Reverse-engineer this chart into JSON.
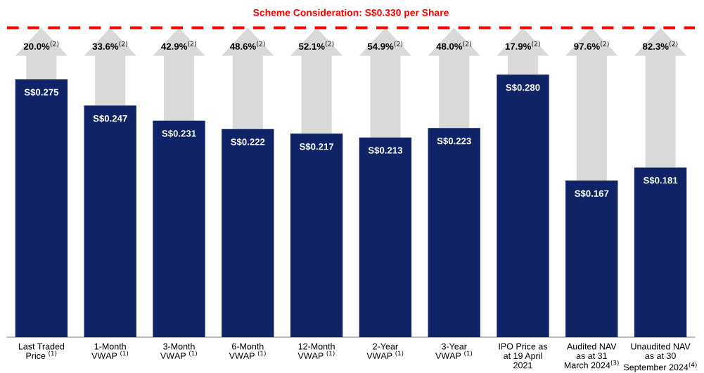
{
  "chart_data": {
    "type": "bar",
    "categories": [
      "Last Traded\nPrice $^{(1)}$",
      "1-Month\nVWAP $^{(1)}$",
      "3-Month\nVWAP $^{(1)}$",
      "6-Month\nVWAP $^{(1)}$",
      "12-Month\nVWAP $^{(1)}$",
      "2-Year\nVWAP $^{(1)}$",
      "3-Year\nVWAP $^{(1)}$",
      "IPO Price as\nat 19 April\n2021",
      "Audited NAV\nas at 31\nMarch 2024$^{(3)}$",
      "Unaudited NAV\nas at 30\nSeptember 2024$^{(4)}$"
    ],
    "values": [
      0.275,
      0.247,
      0.231,
      0.222,
      0.217,
      0.213,
      0.223,
      0.28,
      0.167,
      0.181
    ],
    "value_labels": [
      "S$0.275",
      "S$0.247",
      "S$0.231",
      "S$0.222",
      "S$0.217",
      "S$0.213",
      "S$0.223",
      "S$0.280",
      "S$0.167",
      "S$0.181"
    ],
    "color": "#0f2366",
    "tick_labels": "x",
    "grid": false,
    "legend": false,
    "ref_lines": [
      {
        "axis": "y",
        "value": 0.33,
        "label": "Scheme Consideration: S$0.330 per Share",
        "color": "#ff0000",
        "line_style": "dashed"
      }
    ],
    "annotations": [
      {
        "text": "20.0%$^{(2)}$",
        "x": "Last Traded\nPrice $^{(1)}$",
        "y": 0.33
      },
      {
        "text": "33.6%$^{(2)}$",
        "x": "1-Month\nVWAP $^{(1)}$",
        "y": 0.33
      },
      {
        "text": "42.9%$^{(2)}$",
        "x": "3-Month\nVWAP $^{(1)}$",
        "y": 0.33
      },
      {
        "text": "48.6%$^{(2)}$",
        "x": "6-Month\nVWAP $^{(1)}$",
        "y": 0.33
      },
      {
        "text": "52.1%$^{(2)}$",
        "x": "12-Month\nVWAP $^{(1)}$",
        "y": 0.33
      },
      {
        "text": "54.9%$^{(2)}$",
        "x": "2-Year\nVWAP $^{(1)}$",
        "y": 0.33
      },
      {
        "text": "48.0%$^{(2)}$",
        "x": "3-Year\nVWAP $^{(1)}$",
        "y": 0.33
      },
      {
        "text": "17.9%$^{(2)}$",
        "x": "IPO Price as\nat 19 April\n2021",
        "y": 0.33
      },
      {
        "text": "97.6%$^{(2)}$",
        "x": "Audited NAV\nas at 31\nMarch 2024$^{(3)}$",
        "y": 0.33
      },
      {
        "text": "82.3%$^{(2)}$",
        "x": "Unaudited NAV\nas at 30\nSeptember 2024$^{(4)}$",
        "y": 0.33
      }
    ]
  }
}
